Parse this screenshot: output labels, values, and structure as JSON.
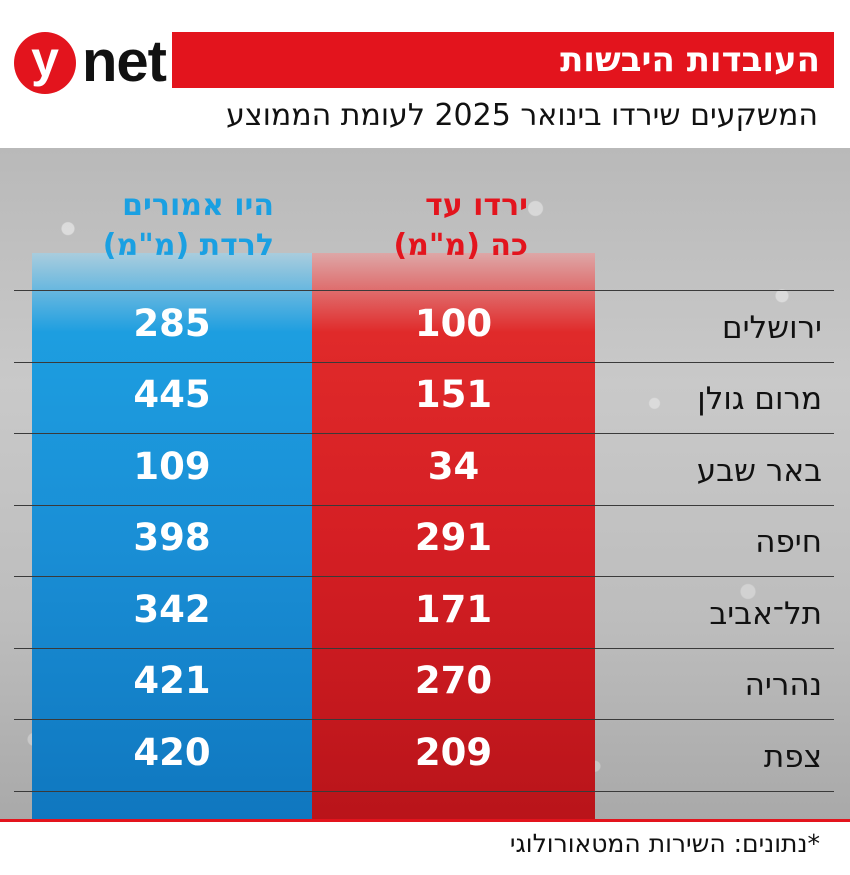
{
  "logo": {
    "mark": "y",
    "wordmark": "net"
  },
  "title": "העובדות היבשות",
  "subtitle": "המשקעים שירדו בינואר 2025 לעומת הממוצע",
  "chart_data": {
    "type": "table",
    "columns": [
      {
        "key": "fell",
        "label_lines": [
          "ירדו עד",
          "כה (מ\"מ)"
        ],
        "color": "#e3141d"
      },
      {
        "key": "expected",
        "label_lines": [
          "היו אמורים",
          "לרדת (מ\"מ)"
        ],
        "color": "#1aa0e2"
      }
    ],
    "rows": [
      {
        "city": "ירושלים",
        "fell": 100,
        "expected": 285
      },
      {
        "city": "מרום גולן",
        "fell": 151,
        "expected": 445
      },
      {
        "city": "באר שבע",
        "fell": 34,
        "expected": 109
      },
      {
        "city": "חיפה",
        "fell": 291,
        "expected": 398
      },
      {
        "city": "תל־אביב",
        "fell": 171,
        "expected": 342
      },
      {
        "city": "נהריה",
        "fell": 270,
        "expected": 421
      },
      {
        "city": "צפת",
        "fell": 209,
        "expected": 420
      }
    ]
  },
  "source": "*נתונים: השירות המטאורולוגי",
  "colors": {
    "accent_red": "#e3141d",
    "accent_blue": "#1aa0e2",
    "text": "#111111"
  }
}
